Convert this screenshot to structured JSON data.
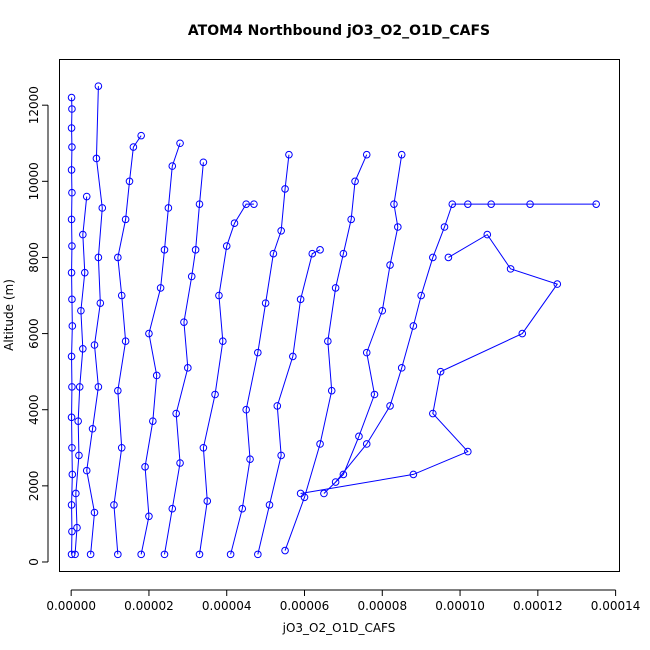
{
  "chart_data": {
    "type": "scatter",
    "title": "ATOM4 Northbound jO3_O2_O1D_CAFS",
    "xlabel": "jO3_O2_O1D_CAFS",
    "ylabel": "Altitude (m)",
    "xlim": [
      -3e-06,
      0.000141
    ],
    "ylim": [
      -250,
      13200
    ],
    "x_ticks": [
      0,
      2e-05,
      4e-05,
      6e-05,
      8e-05,
      0.0001,
      0.00012,
      0.00014
    ],
    "x_tick_labels": [
      "0.00000",
      "0.00002",
      "0.00004",
      "0.00006",
      "0.00008",
      "0.00010",
      "0.00012",
      "0.00014"
    ],
    "y_ticks": [
      0,
      2000,
      4000,
      6000,
      8000,
      10000,
      12000
    ],
    "y_tick_labels": [
      "0",
      "2000",
      "4000",
      "6000",
      "8000",
      "10000",
      "12000"
    ],
    "grid": false,
    "marker": "open-circle",
    "line_style": "connected",
    "color": "#0000ff",
    "series": [
      {
        "x": [
          1e-07,
          2e-07,
          1e-07,
          3e-07,
          2e-07,
          1e-07,
          2e-07,
          1e-07,
          3e-07,
          2e-07,
          1e-07,
          2e-07,
          1e-07,
          2e-07,
          1e-07,
          2e-07,
          1e-07,
          2e-07,
          1e-07
        ],
        "y": [
          200,
          800,
          1500,
          2300,
          3000,
          3800,
          4600,
          5400,
          6200,
          6900,
          7600,
          8300,
          9000,
          9700,
          10300,
          10900,
          11400,
          11900,
          12200
        ]
      },
      {
        "x": [
          1e-06,
          1.5e-06,
          1.2e-06,
          2e-06,
          1.8e-06,
          2.2e-06,
          3e-06,
          2.5e-06,
          3.5e-06,
          3e-06,
          4e-06
        ],
        "y": [
          200,
          900,
          1800,
          2800,
          3700,
          4600,
          5600,
          6600,
          7600,
          8600,
          9600
        ]
      },
      {
        "x": [
          5e-06,
          6e-06,
          4e-06,
          5.5e-06,
          7e-06,
          6e-06,
          7.5e-06,
          7e-06,
          8e-06,
          6.5e-06,
          7e-06
        ],
        "y": [
          200,
          1300,
          2400,
          3500,
          4600,
          5700,
          6800,
          8000,
          9300,
          10600,
          12500
        ]
      },
      {
        "x": [
          1.2e-05,
          1.1e-05,
          1.3e-05,
          1.2e-05,
          1.4e-05,
          1.3e-05,
          1.2e-05,
          1.4e-05,
          1.5e-05,
          1.6e-05,
          1.8e-05
        ],
        "y": [
          200,
          1500,
          3000,
          4500,
          5800,
          7000,
          8000,
          9000,
          10000,
          10900,
          11200
        ]
      },
      {
        "x": [
          1.8e-05,
          2e-05,
          1.9e-05,
          2.1e-05,
          2.2e-05,
          2e-05,
          2.3e-05,
          2.4e-05,
          2.5e-05,
          2.6e-05,
          2.8e-05
        ],
        "y": [
          200,
          1200,
          2500,
          3700,
          4900,
          6000,
          7200,
          8200,
          9300,
          10400,
          11000
        ]
      },
      {
        "x": [
          2.4e-05,
          2.6e-05,
          2.8e-05,
          2.7e-05,
          3e-05,
          2.9e-05,
          3.1e-05,
          3.2e-05,
          3.3e-05,
          3.4e-05
        ],
        "y": [
          200,
          1400,
          2600,
          3900,
          5100,
          6300,
          7500,
          8200,
          9400,
          10500
        ]
      },
      {
        "x": [
          3.3e-05,
          3.5e-05,
          3.4e-05,
          3.7e-05,
          3.9e-05,
          3.8e-05,
          4e-05,
          4.2e-05,
          4.5e-05,
          4.7e-05
        ],
        "y": [
          200,
          1600,
          3000,
          4400,
          5800,
          7000,
          8300,
          8900,
          9400,
          9400
        ]
      },
      {
        "x": [
          4.1e-05,
          4.4e-05,
          4.6e-05,
          4.5e-05,
          4.8e-05,
          5e-05,
          5.2e-05,
          5.4e-05,
          5.5e-05,
          5.6e-05
        ],
        "y": [
          200,
          1400,
          2700,
          4000,
          5500,
          6800,
          8100,
          8700,
          9800,
          10700
        ]
      },
      {
        "x": [
          4.8e-05,
          5.1e-05,
          5.4e-05,
          5.3e-05,
          5.7e-05,
          5.9e-05,
          6.2e-05,
          6.4e-05
        ],
        "y": [
          200,
          1500,
          2800,
          4100,
          5400,
          6900,
          8100,
          8200
        ]
      },
      {
        "x": [
          5.5e-05,
          6e-05,
          6.4e-05,
          6.7e-05,
          6.6e-05,
          6.8e-05,
          7e-05,
          7.2e-05,
          7.3e-05,
          7.6e-05
        ],
        "y": [
          300,
          1700,
          3100,
          4500,
          5800,
          7200,
          8100,
          9000,
          10000,
          10700
        ]
      },
      {
        "x": [
          6.5e-05,
          7e-05,
          7.4e-05,
          7.8e-05,
          7.6e-05,
          8e-05,
          8.2e-05,
          8.4e-05,
          8.3e-05,
          8.5e-05
        ],
        "y": [
          1800,
          2300,
          3300,
          4400,
          5500,
          6600,
          7800,
          8800,
          9400,
          10700
        ]
      },
      {
        "x": [
          6.8e-05,
          7.6e-05,
          8.2e-05,
          8.5e-05,
          8.8e-05,
          9e-05,
          9.3e-05,
          9.6e-05,
          9.8e-05,
          0.000102,
          0.000108,
          0.000118,
          0.000135
        ],
        "y": [
          2100,
          3100,
          4100,
          5100,
          6200,
          7000,
          8000,
          8800,
          9400,
          9400,
          9400,
          9400,
          9400
        ]
      },
      {
        "x": [
          5.9e-05,
          8.8e-05,
          0.000102,
          9.3e-05,
          9.5e-05,
          0.000116,
          0.000125,
          0.000113,
          0.000107,
          9.7e-05
        ],
        "y": [
          1800,
          2300,
          2900,
          3900,
          5000,
          6000,
          7300,
          7700,
          8600,
          8000
        ]
      }
    ]
  }
}
